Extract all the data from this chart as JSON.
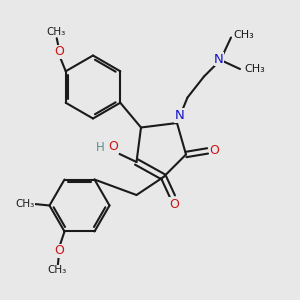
{
  "background_color": "#e8e8e8",
  "bond_color": "#1a1a1a",
  "atom_colors": {
    "N": "#1414cc",
    "O": "#cc1414",
    "H": "#5a9090",
    "C": "#1a1a1a"
  },
  "figsize": [
    3.0,
    3.0
  ],
  "dpi": 100,
  "xlim": [
    0,
    10
  ],
  "ylim": [
    0,
    10
  ]
}
